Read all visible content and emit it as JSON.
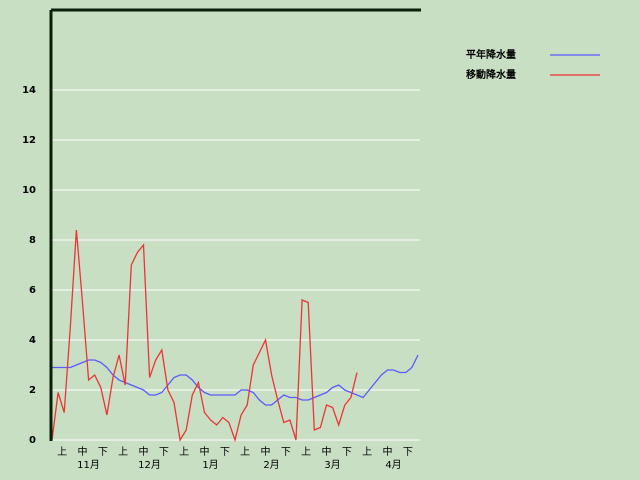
{
  "chart_data": {
    "type": "line",
    "x_labels": [
      "上",
      "中",
      "下",
      "上",
      "中",
      "下",
      "上",
      "中",
      "下",
      "上",
      "中",
      "下",
      "上",
      "中",
      "下",
      "上",
      "中",
      "下"
    ],
    "months": [
      "11月",
      "12月",
      "1月",
      "2月",
      "3月",
      "4月"
    ],
    "series": [
      {
        "name": "平年降水量",
        "color": "#5a5aff",
        "values": [
          2.9,
          2.9,
          2.9,
          2.9,
          3.0,
          3.1,
          3.2,
          3.2,
          3.1,
          2.9,
          2.6,
          2.4,
          2.3,
          2.2,
          2.1,
          2.0,
          1.8,
          1.8,
          1.9,
          2.2,
          2.5,
          2.6,
          2.6,
          2.4,
          2.1,
          1.9,
          1.8,
          1.8,
          1.8,
          1.8,
          1.8,
          2.0,
          2.0,
          1.9,
          1.6,
          1.4,
          1.4,
          1.6,
          1.8,
          1.7,
          1.7,
          1.6,
          1.6,
          1.7,
          1.8,
          1.9,
          2.1,
          2.2,
          2.0,
          1.9,
          1.8,
          1.7,
          2.0,
          2.3,
          2.6,
          2.8,
          2.8,
          2.7,
          2.7,
          2.9,
          3.4
        ]
      },
      {
        "name": "移動降水量",
        "color": "#ee3333",
        "values": [
          0,
          1.9,
          1.1,
          4.5,
          8.4,
          5.5,
          2.4,
          2.6,
          2.1,
          1.0,
          2.5,
          3.4,
          2.2,
          7.0,
          7.5,
          7.8,
          2.5,
          3.2,
          3.6,
          2.0,
          1.5,
          0,
          0.4,
          1.8,
          2.3,
          1.1,
          0.8,
          0.6,
          0.9,
          0.7,
          0,
          1.0,
          1.4,
          3.0,
          3.5,
          4.0,
          2.6,
          1.6,
          0.7,
          0.8,
          0,
          5.6,
          5.5,
          0.4,
          0.5,
          1.4,
          1.3,
          0.6,
          1.4,
          1.7,
          2.7,
          null,
          null,
          null,
          null,
          null,
          null,
          null,
          null,
          null,
          null
        ]
      }
    ],
    "ylim": [
      0,
      17.2
    ],
    "yticks": [
      0,
      2,
      4,
      6,
      8,
      10,
      12,
      14
    ],
    "grid": true
  }
}
